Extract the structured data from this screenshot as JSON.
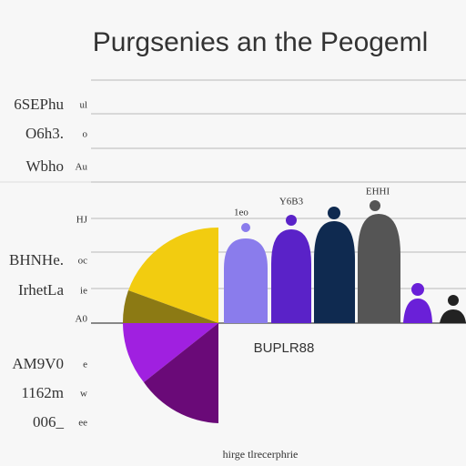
{
  "header": {
    "title": "Purgsenies an the Peogeml"
  },
  "row_labels": [
    [
      "6SEPhu",
      "ul"
    ],
    [
      "O6h3.",
      "o"
    ],
    [
      "Wbho",
      "Au"
    ],
    [
      "",
      "HJ"
    ],
    [
      "BHNHe.",
      "oc"
    ],
    [
      "IrhetLa",
      "ie"
    ],
    [
      "",
      "A0"
    ],
    [
      "AM9V0",
      "e"
    ],
    [
      "1162m",
      "w"
    ],
    [
      "006_",
      "ee"
    ]
  ],
  "bar_labels": [
    "1eo",
    "Y6B3",
    "EHHI"
  ],
  "mid_label": "BUPLR88",
  "footer": "hirge tlrecerphrie"
}
